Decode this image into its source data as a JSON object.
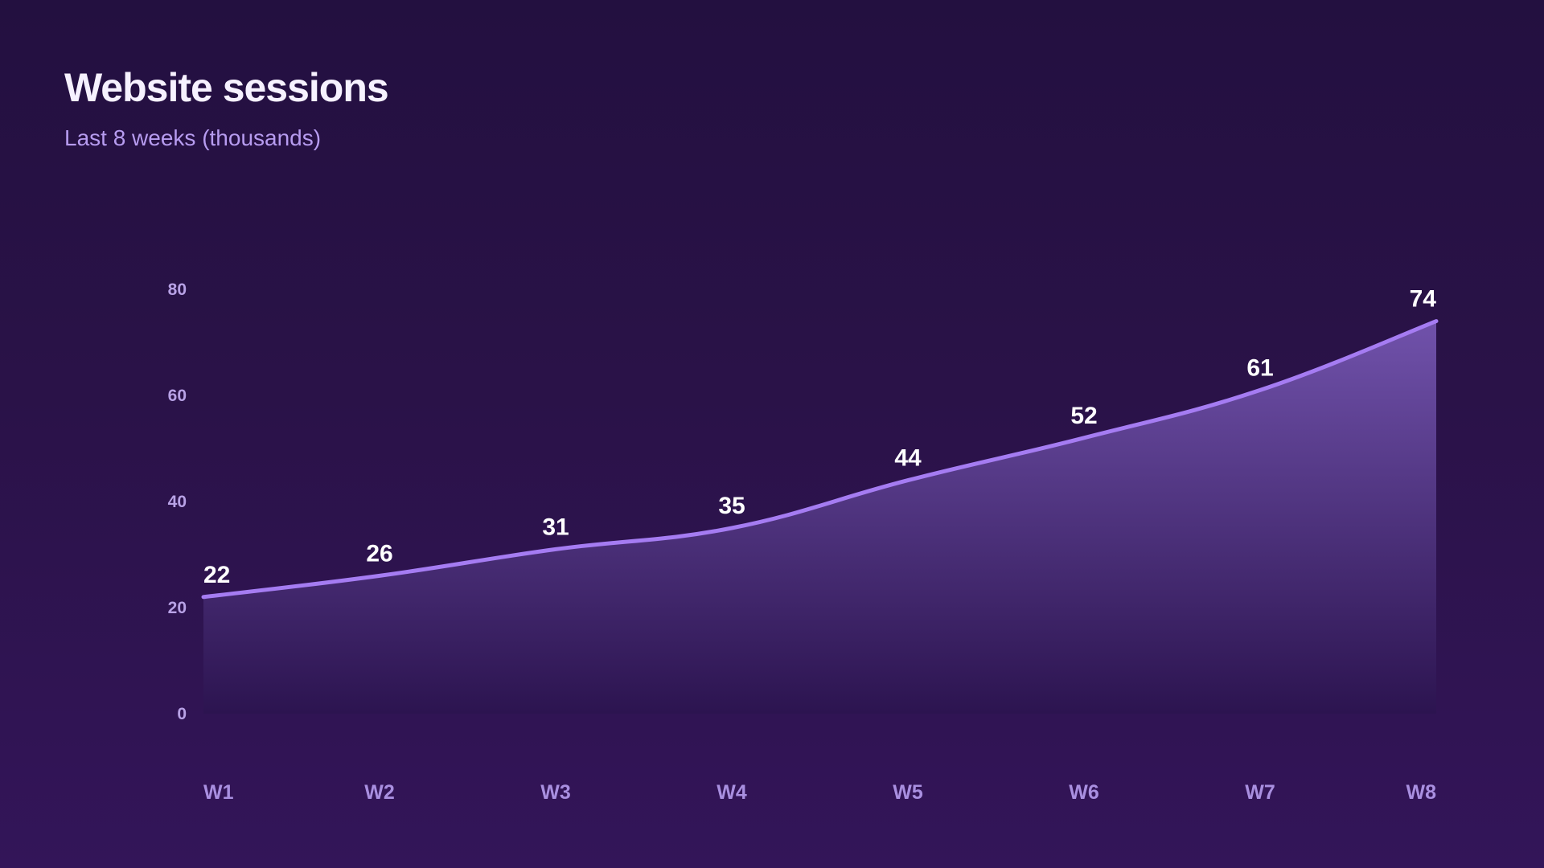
{
  "header": {
    "title": "Website sessions",
    "subtitle": "Last 8 weeks (thousands)"
  },
  "colors": {
    "line": "#a57cf2",
    "area_top": "#7455b0",
    "area_bottom": "#2c1450",
    "title": "#f6f1ff",
    "subtitle": "#b79cf0",
    "tick": "#b8a2e6"
  },
  "chart_data": {
    "type": "area",
    "title": "Website sessions",
    "subtitle": "Last 8 weeks (thousands)",
    "categories": [
      "W1",
      "W2",
      "W3",
      "W4",
      "W5",
      "W6",
      "W7",
      "W8"
    ],
    "series": [
      {
        "values": [
          22,
          26,
          31,
          35,
          44,
          52,
          61,
          74
        ]
      }
    ],
    "y_ticks": [
      0,
      20,
      40,
      60,
      80
    ],
    "ylim": [
      0,
      80
    ],
    "xlabel": "",
    "ylabel": "",
    "grid": false,
    "legend": "none",
    "data_labels": true,
    "smooth": true
  }
}
